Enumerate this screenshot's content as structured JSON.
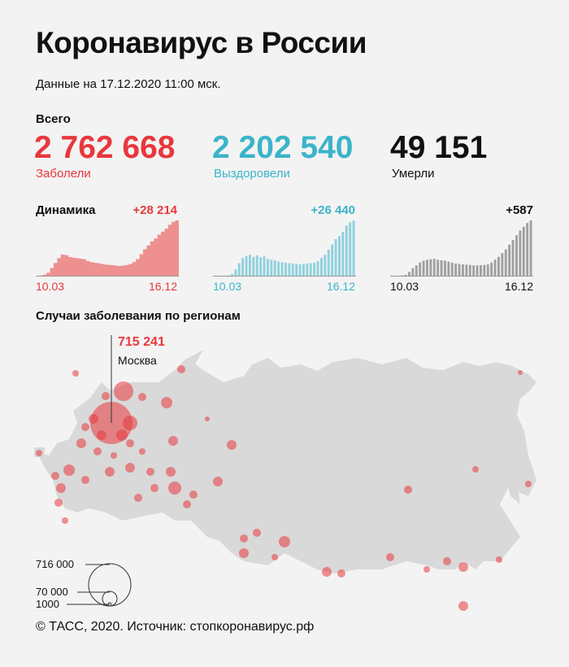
{
  "title": "Коронавирус в России",
  "date": "Данные на 17.12.2020 11:00 мск.",
  "totals": {
    "label": "Всего",
    "cases": {
      "value": "2 762 668",
      "label": "Заболели"
    },
    "recovered": {
      "value": "2 202 540",
      "label": "Выздоровели"
    },
    "deaths": {
      "value": "49 151",
      "label": "Умерли"
    }
  },
  "dynamics_label": "Динамика",
  "colors": {
    "cases": "#e8383d",
    "recovered": "#3bb4c9",
    "deaths": "#111111",
    "bg": "#f3f3f3",
    "map": "#d9d9d9"
  },
  "chart_data": [
    {
      "type": "area",
      "name": "cases",
      "delta": "+28 214",
      "x_start": "10.03",
      "x_end": "16.12",
      "values": [
        20,
        100,
        500,
        1500,
        4000,
        6500,
        9000,
        10800,
        10500,
        9500,
        9200,
        9000,
        8700,
        8400,
        7500,
        6900,
        6600,
        6400,
        6000,
        5700,
        5500,
        5400,
        5100,
        5000,
        5200,
        5500,
        6000,
        7000,
        8500,
        11000,
        13500,
        15500,
        17500,
        19000,
        21000,
        22500,
        24000,
        26000,
        27500,
        28214
      ]
    },
    {
      "type": "bar",
      "name": "recovered",
      "delta": "+26 440",
      "x_start": "10.03",
      "x_end": "16.12",
      "values": [
        0,
        0,
        10,
        50,
        200,
        800,
        3000,
        6000,
        8500,
        9500,
        10000,
        9000,
        9800,
        8800,
        9200,
        8000,
        7600,
        7400,
        6800,
        6500,
        6200,
        6000,
        5800,
        5600,
        5500,
        5700,
        5900,
        6000,
        6200,
        7000,
        8500,
        10000,
        12500,
        15000,
        17500,
        19000,
        21000,
        24000,
        25500,
        26440
      ]
    },
    {
      "type": "bar",
      "name": "deaths",
      "delta": "+587",
      "x_start": "10.03",
      "x_end": "16.12",
      "values": [
        0,
        0,
        1,
        3,
        10,
        40,
        80,
        110,
        140,
        160,
        170,
        175,
        180,
        170,
        165,
        160,
        150,
        140,
        130,
        125,
        120,
        118,
        115,
        110,
        110,
        112,
        115,
        120,
        140,
        170,
        200,
        240,
        280,
        330,
        380,
        430,
        480,
        520,
        560,
        587
      ]
    }
  ],
  "map": {
    "label": "Случаи заболевания по регионам",
    "moscow": {
      "value": "715 241",
      "name": "Москва"
    },
    "legend": [
      "716 000",
      "70 000",
      "1000"
    ]
  },
  "footer": "© ТАСС, 2020. Источник: стопкоронавирус.рф"
}
